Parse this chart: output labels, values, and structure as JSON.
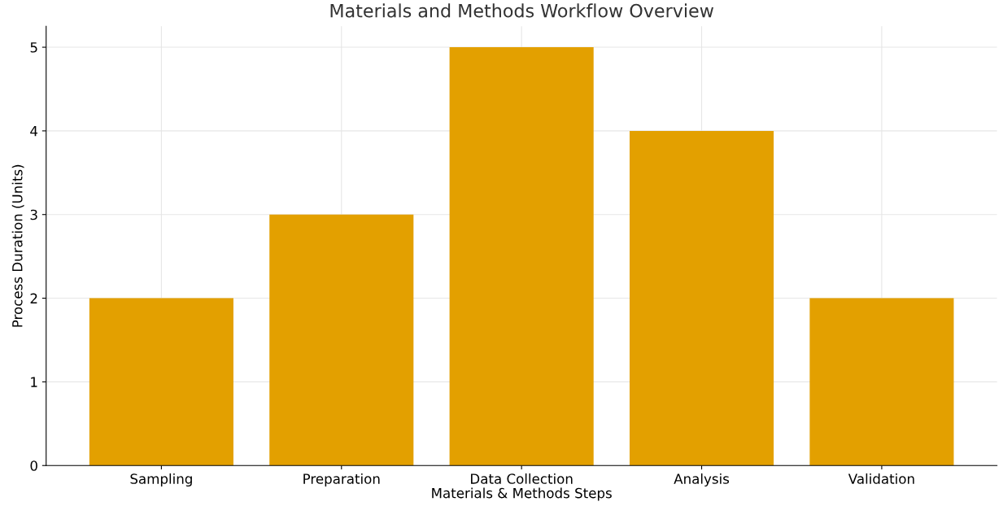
{
  "chart_data": {
    "type": "bar",
    "title": "Materials and Methods Workflow Overview",
    "xlabel": "Materials & Methods Steps",
    "ylabel": "Process Duration (Units)",
    "categories": [
      "Sampling",
      "Preparation",
      "Data Collection",
      "Analysis",
      "Validation"
    ],
    "values": [
      2,
      3,
      5,
      4,
      2
    ],
    "color": "#e3a000",
    "ylim": [
      0,
      5.25
    ],
    "yticks": [
      0,
      1,
      2,
      3,
      4,
      5
    ],
    "grid": true
  }
}
